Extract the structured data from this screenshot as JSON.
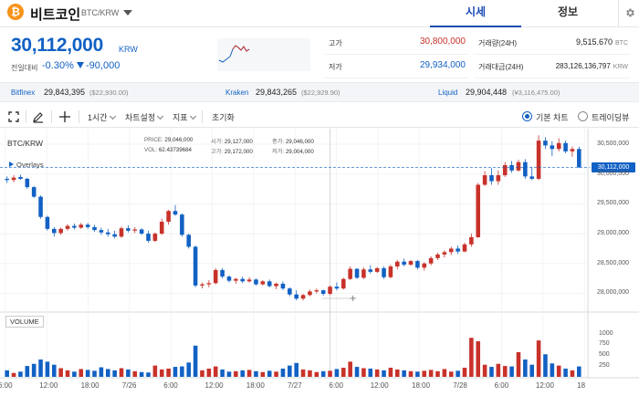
{
  "coin": {
    "logo_glyph": "₿",
    "name": "비트코인",
    "pair": "BTC/KRW"
  },
  "tabs": {
    "market": "시세",
    "info": "정보"
  },
  "summary": {
    "price": "30,112,000",
    "unit": "KRW",
    "change_label": "전일대비",
    "change_rate": "-0.30%",
    "change_amount": "-90,000"
  },
  "stats": {
    "high_label": "고가",
    "high": "30,800,000",
    "low_label": "저가",
    "low": "29,934,000",
    "volume_label": "거래량(24H)",
    "volume": "9,515.670",
    "volume_unit": "BTC",
    "amount_label": "거래대금(24H)",
    "amount": "283,126,136,797",
    "amount_unit": "KRW"
  },
  "exchanges": [
    {
      "name": "Bitfinex",
      "price": "29,843,395",
      "sub": "($22,930.00)"
    },
    {
      "name": "Kraken",
      "price": "29,843,265",
      "sub": "($22,929.90)"
    },
    {
      "name": "Liquid",
      "price": "29,904,448",
      "sub": "(¥3,116,475.00)"
    }
  ],
  "toolbar": {
    "interval": "1시간",
    "chart_settings": "차트설정",
    "indicators": "지표",
    "reset": "초기화",
    "basic_chart": "기본 차트",
    "tradingview": "트레이딩뷰"
  },
  "chart_legend": {
    "pair": "BTC/KRW",
    "price_k": "PRICE:",
    "price_v": "29,046,000",
    "open_k": "시가:",
    "open_v": "29,127,000",
    "close_k": "종가:",
    "close_v": "29,046,000",
    "vol_k": "VOL:",
    "vol_v": "62.43739684",
    "high_k": "고가:",
    "high_v": "29,172,000",
    "low_k": "저가:",
    "low_v": "29,004,000",
    "overlays": "Overlays",
    "volume": "VOLUME",
    "current_tag": "30,112,000"
  },
  "chart_data": {
    "type": "candlestick",
    "y_ticks": [
      "30,500,000",
      "30,000,000",
      "29,500,000",
      "29,000,000",
      "28,500,000",
      "28,000,000"
    ],
    "y_tick_values": [
      30500000,
      30000000,
      29500000,
      29000000,
      28500000,
      28000000
    ],
    "ylim": [
      27700000,
      30700000
    ],
    "volume_ticks": [
      "1000",
      "750",
      "500",
      "250"
    ],
    "volume_tick_values": [
      1000,
      750,
      500,
      250
    ],
    "volume_lim": [
      0,
      1200
    ],
    "x_labels": [
      "6:00",
      "12:00",
      "18:00",
      "7/26",
      "6:00",
      "12:00",
      "18:00",
      "7/27",
      "6:00",
      "12:00",
      "18:00",
      "7/28",
      "6:00",
      "12:00",
      "18"
    ],
    "current_price": 30112000,
    "candles": [
      [
        29920000,
        29960000,
        29850000,
        29900000,
        150
      ],
      [
        29900000,
        29980000,
        29860000,
        29940000,
        90
      ],
      [
        29950000,
        29990000,
        29900000,
        29920000,
        120
      ],
      [
        29920000,
        29940000,
        29750000,
        29780000,
        250
      ],
      [
        29780000,
        29800000,
        29600000,
        29620000,
        300
      ],
      [
        29620000,
        29640000,
        29250000,
        29280000,
        400
      ],
      [
        29280000,
        29300000,
        29050000,
        29080000,
        350
      ],
      [
        29080000,
        29110000,
        28950000,
        29010000,
        280
      ],
      [
        29010000,
        29100000,
        28980000,
        29080000,
        200
      ],
      [
        29080000,
        29160000,
        29050000,
        29130000,
        150
      ],
      [
        29130000,
        29170000,
        29070000,
        29100000,
        120
      ],
      [
        29100000,
        29180000,
        29080000,
        29150000,
        180
      ],
      [
        29150000,
        29180000,
        29080000,
        29110000,
        160
      ],
      [
        29110000,
        29150000,
        29030000,
        29060000,
        140
      ],
      [
        29060000,
        29100000,
        28980000,
        29020000,
        220
      ],
      [
        29020000,
        29080000,
        28950000,
        28990000,
        180
      ],
      [
        28990000,
        29050000,
        28920000,
        28950000,
        150
      ],
      [
        28950000,
        29120000,
        28930000,
        29090000,
        200
      ],
      [
        29090000,
        29140000,
        29020000,
        29050000,
        170
      ],
      [
        29050000,
        29110000,
        29010000,
        29070000,
        130
      ],
      [
        29070000,
        29090000,
        28980000,
        29000000,
        110
      ],
      [
        29000000,
        29050000,
        28850000,
        28880000,
        100
      ],
      [
        28880000,
        29020000,
        28860000,
        29000000,
        260
      ],
      [
        29000000,
        29250000,
        28980000,
        29200000,
        170
      ],
      [
        29200000,
        29400000,
        29150000,
        29380000,
        190
      ],
      [
        29380000,
        29480000,
        29300000,
        29320000,
        230
      ],
      [
        29320000,
        29340000,
        28950000,
        28980000,
        240
      ],
      [
        28980000,
        29000000,
        28750000,
        28780000,
        330
      ],
      [
        28780000,
        28800000,
        28100000,
        28130000,
        720
      ],
      [
        28130000,
        28180000,
        28080000,
        28150000,
        150
      ],
      [
        28150000,
        28220000,
        28100000,
        28170000,
        190
      ],
      [
        28170000,
        28420000,
        28150000,
        28390000,
        240
      ],
      [
        28390000,
        28420000,
        28250000,
        28280000,
        170
      ],
      [
        28280000,
        28300000,
        28180000,
        28210000,
        120
      ],
      [
        28210000,
        28260000,
        28160000,
        28240000,
        130
      ],
      [
        28240000,
        28280000,
        28170000,
        28200000,
        150
      ],
      [
        28200000,
        28270000,
        28180000,
        28230000,
        160
      ],
      [
        28230000,
        28250000,
        28130000,
        28150000,
        130
      ],
      [
        28150000,
        28220000,
        28130000,
        28200000,
        110
      ],
      [
        28200000,
        28230000,
        28100000,
        28120000,
        140
      ],
      [
        28120000,
        28180000,
        28070000,
        28160000,
        120
      ],
      [
        28160000,
        28200000,
        28050000,
        28080000,
        190
      ],
      [
        28080000,
        28100000,
        27950000,
        27980000,
        260
      ],
      [
        27980000,
        28050000,
        27880000,
        27910000,
        320
      ],
      [
        27910000,
        27990000,
        27880000,
        27970000,
        170
      ],
      [
        27970000,
        28060000,
        27950000,
        28030000,
        150
      ],
      [
        28030000,
        28080000,
        28000000,
        28050000,
        110
      ],
      [
        28050000,
        28060000,
        27960000,
        27990000,
        130
      ],
      [
        27990000,
        28130000,
        27970000,
        28110000,
        140
      ],
      [
        28110000,
        28180000,
        28050000,
        28080000,
        180
      ],
      [
        28080000,
        28260000,
        28060000,
        28240000,
        210
      ],
      [
        28240000,
        28450000,
        28220000,
        28410000,
        350
      ],
      [
        28410000,
        28420000,
        28240000,
        28260000,
        230
      ],
      [
        28260000,
        28430000,
        28240000,
        28400000,
        200
      ],
      [
        28400000,
        28470000,
        28330000,
        28360000,
        190
      ],
      [
        28360000,
        28440000,
        28340000,
        28420000,
        170
      ],
      [
        28420000,
        28450000,
        28240000,
        28270000,
        150
      ],
      [
        28270000,
        28480000,
        28250000,
        28450000,
        210
      ],
      [
        28450000,
        28560000,
        28400000,
        28530000,
        170
      ],
      [
        28530000,
        28580000,
        28450000,
        28480000,
        150
      ],
      [
        28480000,
        28560000,
        28460000,
        28540000,
        130
      ],
      [
        28540000,
        28560000,
        28400000,
        28430000,
        120
      ],
      [
        28430000,
        28520000,
        28380000,
        28500000,
        140
      ],
      [
        28500000,
        28620000,
        28470000,
        28590000,
        160
      ],
      [
        28590000,
        28680000,
        28560000,
        28650000,
        130
      ],
      [
        28650000,
        28720000,
        28600000,
        28690000,
        180
      ],
      [
        28690000,
        28780000,
        28640000,
        28750000,
        120
      ],
      [
        28750000,
        28800000,
        28660000,
        28700000,
        140
      ],
      [
        28700000,
        28850000,
        28690000,
        28820000,
        210
      ],
      [
        28820000,
        29000000,
        28780000,
        28940000,
        900
      ],
      [
        28940000,
        29850000,
        28930000,
        29820000,
        820
      ],
      [
        29820000,
        30050000,
        29800000,
        29980000,
        280
      ],
      [
        29980000,
        30100000,
        29820000,
        29880000,
        230
      ],
      [
        29880000,
        30060000,
        29820000,
        29980000,
        300
      ],
      [
        29980000,
        30200000,
        29950000,
        30150000,
        250
      ],
      [
        30150000,
        30220000,
        30020000,
        30060000,
        240
      ],
      [
        30060000,
        30240000,
        30040000,
        30200000,
        570
      ],
      [
        30200000,
        30250000,
        29920000,
        29960000,
        400
      ],
      [
        29960000,
        30120000,
        29900000,
        29920000,
        280
      ],
      [
        29920000,
        30650000,
        29900000,
        30560000,
        840
      ],
      [
        30560000,
        30620000,
        30420000,
        30480000,
        520
      ],
      [
        30480000,
        30550000,
        30300000,
        30420000,
        310
      ],
      [
        30420000,
        30600000,
        30380000,
        30520000,
        260
      ],
      [
        30520000,
        30560000,
        30350000,
        30380000,
        190
      ],
      [
        30380000,
        30460000,
        30290000,
        30420000,
        150
      ],
      [
        30420000,
        30460000,
        30100000,
        30112000,
        240
      ]
    ]
  }
}
